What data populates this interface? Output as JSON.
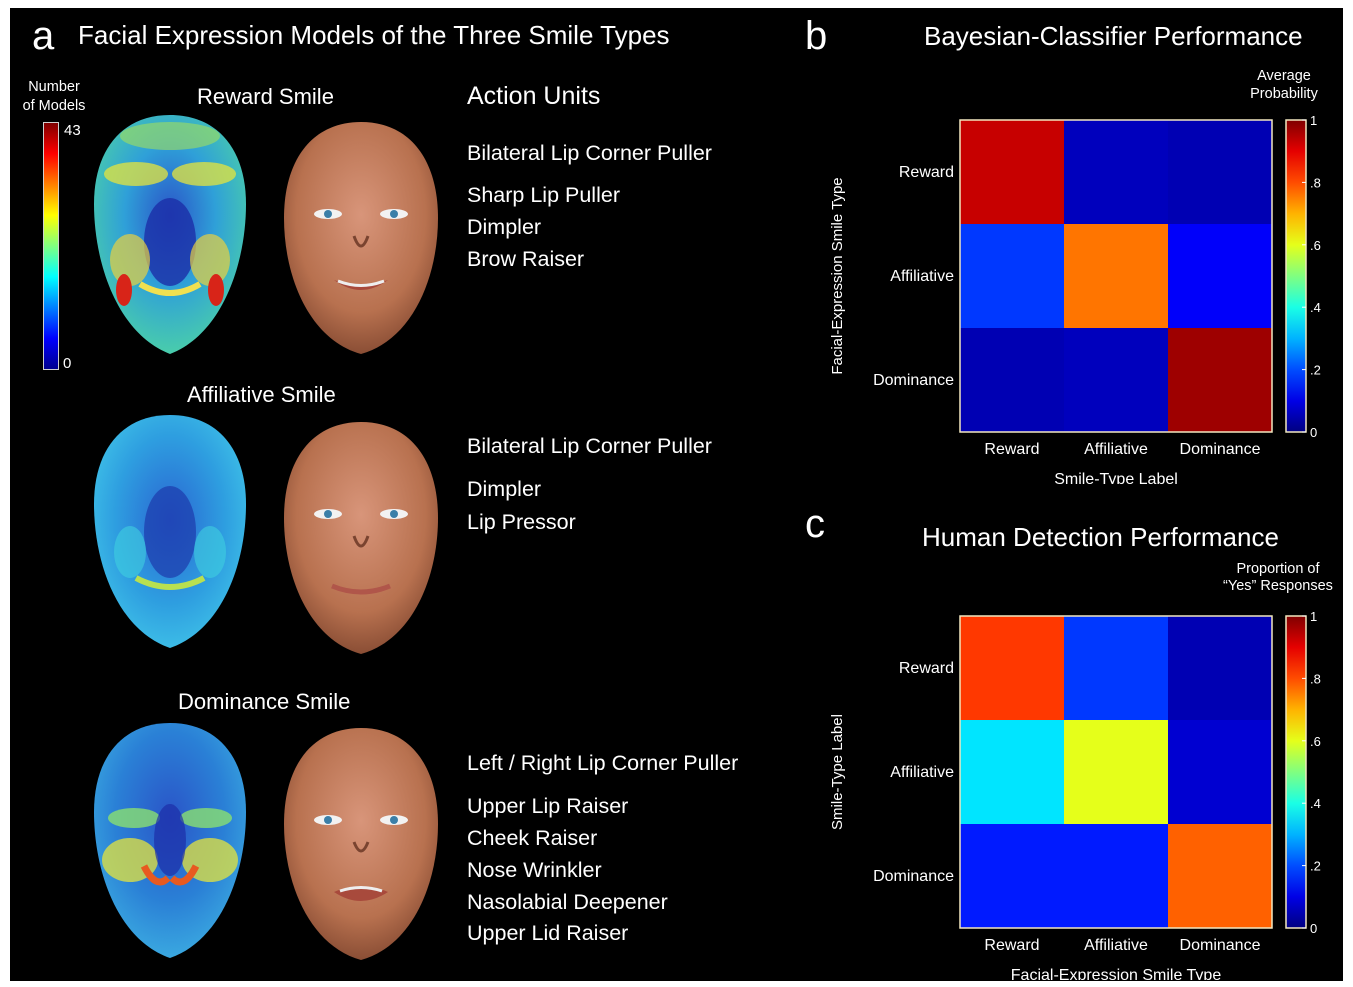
{
  "panel_a": {
    "letter": "a",
    "title": "Facial Expression Models of the Three Smile Types",
    "colorbar": {
      "title_line1": "Number",
      "title_line2": "of Models",
      "max": "43",
      "min": "0"
    },
    "action_units_header": "Action Units",
    "smiles": [
      {
        "name": "Reward Smile",
        "action_units": [
          "Bilateral Lip Corner Puller",
          "Sharp Lip Puller",
          "Dimpler",
          "Brow Raiser"
        ]
      },
      {
        "name": "Affiliative Smile",
        "action_units": [
          "Bilateral Lip Corner Puller",
          "Dimpler",
          "Lip Pressor"
        ]
      },
      {
        "name": "Dominance Smile",
        "action_units": [
          "Left / Right Lip Corner Puller",
          "Upper Lip Raiser",
          "Cheek Raiser",
          "Nose Wrinkler",
          "Nasolabial Deepener",
          "Upper Lid Raiser"
        ]
      }
    ]
  },
  "panel_b": {
    "letter": "b",
    "colorbar_title_line1": "Average",
    "colorbar_title_line2": "Probability",
    "colorbar_ticks": [
      "1",
      ".8",
      ".6",
      ".4",
      ".2",
      "0"
    ]
  },
  "panel_c": {
    "letter": "c",
    "colorbar_title_line1": "Proportion of",
    "colorbar_title_line2": "“Yes” Responses",
    "colorbar_ticks": [
      "1",
      ".8",
      ".6",
      ".4",
      ".2",
      "0"
    ]
  },
  "chart_data": [
    {
      "type": "heatmap",
      "title": "Bayesian-Classifier Performance",
      "xlabel": "Smile-Type Label",
      "ylabel": "Facial-Expression Smile Type",
      "x_categories": [
        "Reward",
        "Affiliative",
        "Dominance"
      ],
      "y_categories": [
        "Reward",
        "Affiliative",
        "Dominance"
      ],
      "values": [
        [
          0.93,
          0.06,
          0.05
        ],
        [
          0.18,
          0.76,
          0.12
        ],
        [
          0.05,
          0.06,
          0.97
        ]
      ],
      "color_range": [
        0,
        1
      ],
      "colormap": "jet"
    },
    {
      "type": "heatmap",
      "title": "Human Detection Performance",
      "xlabel": "Facial-Expression Smile Type",
      "ylabel": "Smile-Type Label",
      "x_categories": [
        "Reward",
        "Affiliative",
        "Dominance"
      ],
      "y_categories": [
        "Reward",
        "Affiliative",
        "Dominance"
      ],
      "values": [
        [
          0.82,
          0.18,
          0.05
        ],
        [
          0.35,
          0.6,
          0.08
        ],
        [
          0.15,
          0.15,
          0.78
        ]
      ],
      "color_range": [
        0,
        1
      ],
      "colormap": "jet"
    }
  ]
}
